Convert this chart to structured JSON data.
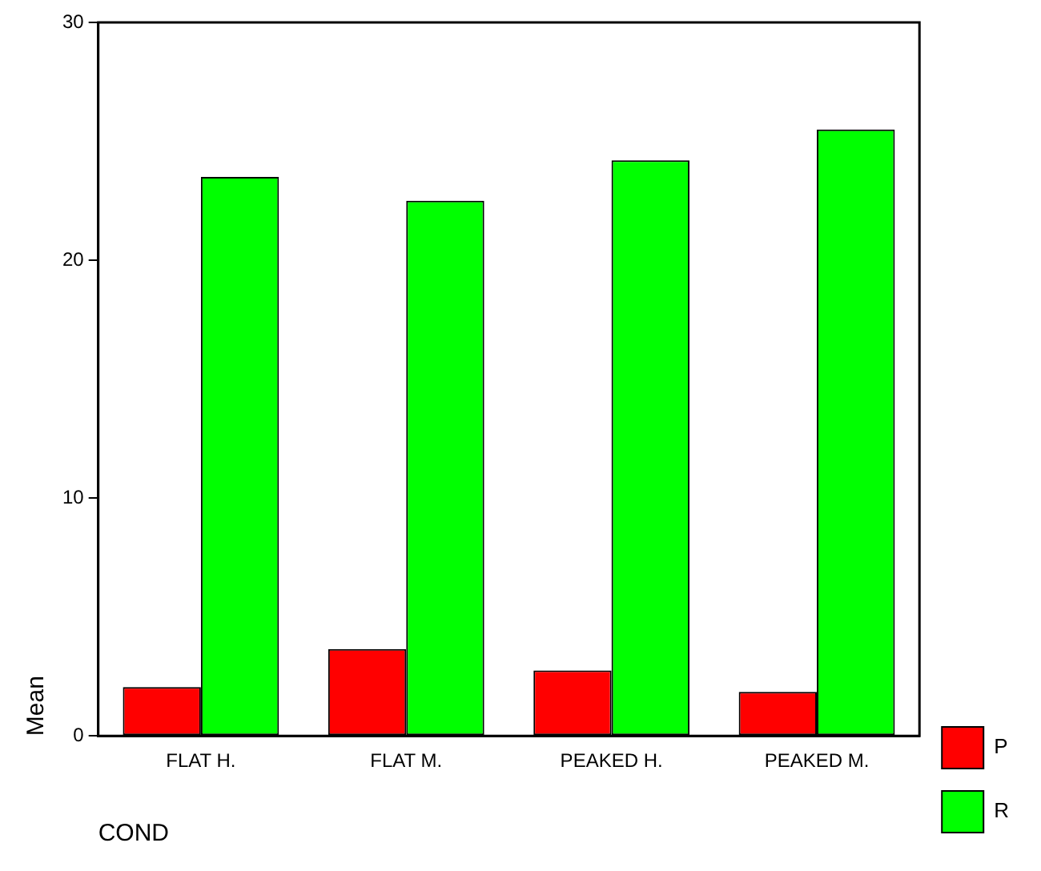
{
  "chart_data": {
    "type": "bar",
    "xlabel": "COND",
    "ylabel": "Mean",
    "categories": [
      "FLAT H.",
      "FLAT M.",
      "PEAKED H.",
      "PEAKED M."
    ],
    "series": [
      {
        "name": "P",
        "color": "#ff0000",
        "values": [
          2.05,
          3.65,
          2.75,
          1.85
        ]
      },
      {
        "name": "R",
        "color": "#00ff00",
        "values": [
          23.5,
          22.5,
          24.2,
          25.5
        ]
      }
    ],
    "ylim": [
      0,
      30
    ],
    "yticks": [
      0,
      10,
      20,
      30
    ],
    "grid": false,
    "legend": "right"
  }
}
